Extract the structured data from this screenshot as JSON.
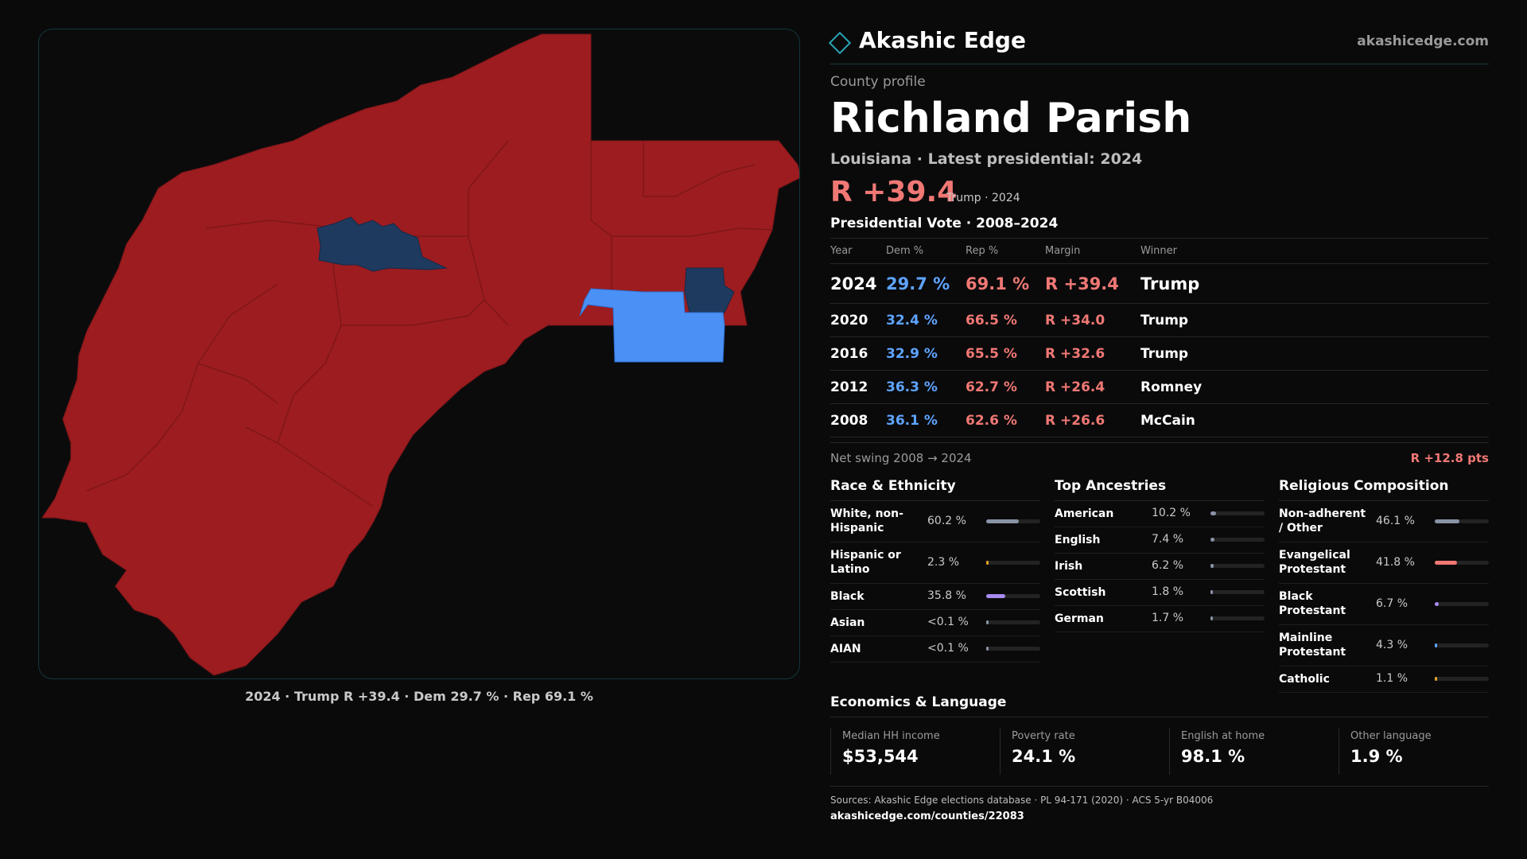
{
  "brand": {
    "name": "Akashic Edge",
    "url": "akashicedge.com"
  },
  "profile": {
    "eyebrow": "County profile",
    "county": "Richland Parish",
    "subline": "Louisiana · Latest presidential: 2024",
    "headline_margin": "R +39.4",
    "headline_note": "Trump · 2024"
  },
  "map": {
    "caption": "2024 · Trump R +39.4 · Dem 29.7 % · Rep 69.1 %",
    "colors": {
      "rep": "#9c1c1f",
      "dem_dark": "#1f3a5f",
      "dem_light": "#4a90f5",
      "border": "#7a1618"
    }
  },
  "votes": {
    "title": "Presidential Vote · 2008–2024",
    "headers": [
      "Year",
      "Dem %",
      "Rep %",
      "Margin",
      "Winner"
    ],
    "rows": [
      {
        "year": "2024",
        "dem": "29.7 %",
        "rep": "69.1 %",
        "margin": "R +39.4",
        "winner": "Trump"
      },
      {
        "year": "2020",
        "dem": "32.4 %",
        "rep": "66.5 %",
        "margin": "R +34.0",
        "winner": "Trump"
      },
      {
        "year": "2016",
        "dem": "32.9 %",
        "rep": "65.5 %",
        "margin": "R +32.6",
        "winner": "Trump"
      },
      {
        "year": "2012",
        "dem": "36.3 %",
        "rep": "62.7 %",
        "margin": "R +26.4",
        "winner": "Romney"
      },
      {
        "year": "2008",
        "dem": "36.1 %",
        "rep": "62.6 %",
        "margin": "R +26.6",
        "winner": "McCain"
      }
    ],
    "swing_label": "Net swing 2008 → 2024",
    "swing_value": "R +12.8 pts"
  },
  "race": {
    "title": "Race & Ethnicity",
    "items": [
      {
        "label": "White, non-Hispanic",
        "value": "60.2 %",
        "share": 60.2,
        "color": "#8a93a6"
      },
      {
        "label": "Hispanic or Latino",
        "value": "2.3 %",
        "share": 2.3,
        "color": "#e0a526"
      },
      {
        "label": "Black",
        "value": "35.8 %",
        "share": 35.8,
        "color": "#a98bf0"
      },
      {
        "label": "Asian",
        "value": "<0.1 %",
        "share": 0.05,
        "color": "#8a93a6"
      },
      {
        "label": "AIAN",
        "value": "<0.1 %",
        "share": 0.05,
        "color": "#8a93a6"
      }
    ]
  },
  "ancestry": {
    "title": "Top Ancestries",
    "items": [
      {
        "label": "American",
        "value": "10.2 %",
        "share": 10.2,
        "color": "#8a93a6"
      },
      {
        "label": "English",
        "value": "7.4 %",
        "share": 7.4,
        "color": "#8a93a6"
      },
      {
        "label": "Irish",
        "value": "6.2 %",
        "share": 6.2,
        "color": "#8a93a6"
      },
      {
        "label": "Scottish",
        "value": "1.8 %",
        "share": 1.8,
        "color": "#8a93a6"
      },
      {
        "label": "German",
        "value": "1.7 %",
        "share": 1.7,
        "color": "#8a93a6"
      }
    ]
  },
  "religion": {
    "title": "Religious Composition",
    "items": [
      {
        "label": "Non-adherent / Other",
        "value": "46.1 %",
        "share": 46.1,
        "color": "#8a93a6"
      },
      {
        "label": "Evangelical Protestant",
        "value": "41.8 %",
        "share": 41.8,
        "color": "#f07874"
      },
      {
        "label": "Black Protestant",
        "value": "6.7 %",
        "share": 6.7,
        "color": "#a98bf0"
      },
      {
        "label": "Mainline Protestant",
        "value": "4.3 %",
        "share": 4.3,
        "color": "#5ea4ff"
      },
      {
        "label": "Catholic",
        "value": "1.1 %",
        "share": 1.1,
        "color": "#e0a526"
      }
    ]
  },
  "economics": {
    "title": "Economics & Language",
    "items": [
      {
        "label": "Median HH income",
        "value": "$53,544"
      },
      {
        "label": "Poverty rate",
        "value": "24.1 %"
      },
      {
        "label": "English at home",
        "value": "98.1 %"
      },
      {
        "label": "Other language",
        "value": "1.9 %"
      }
    ]
  },
  "sources": {
    "text": "Sources: Akashic Edge elections database · PL 94-171 (2020) · ACS 5-yr B04006",
    "url": "akashicedge.com/counties/22083"
  }
}
